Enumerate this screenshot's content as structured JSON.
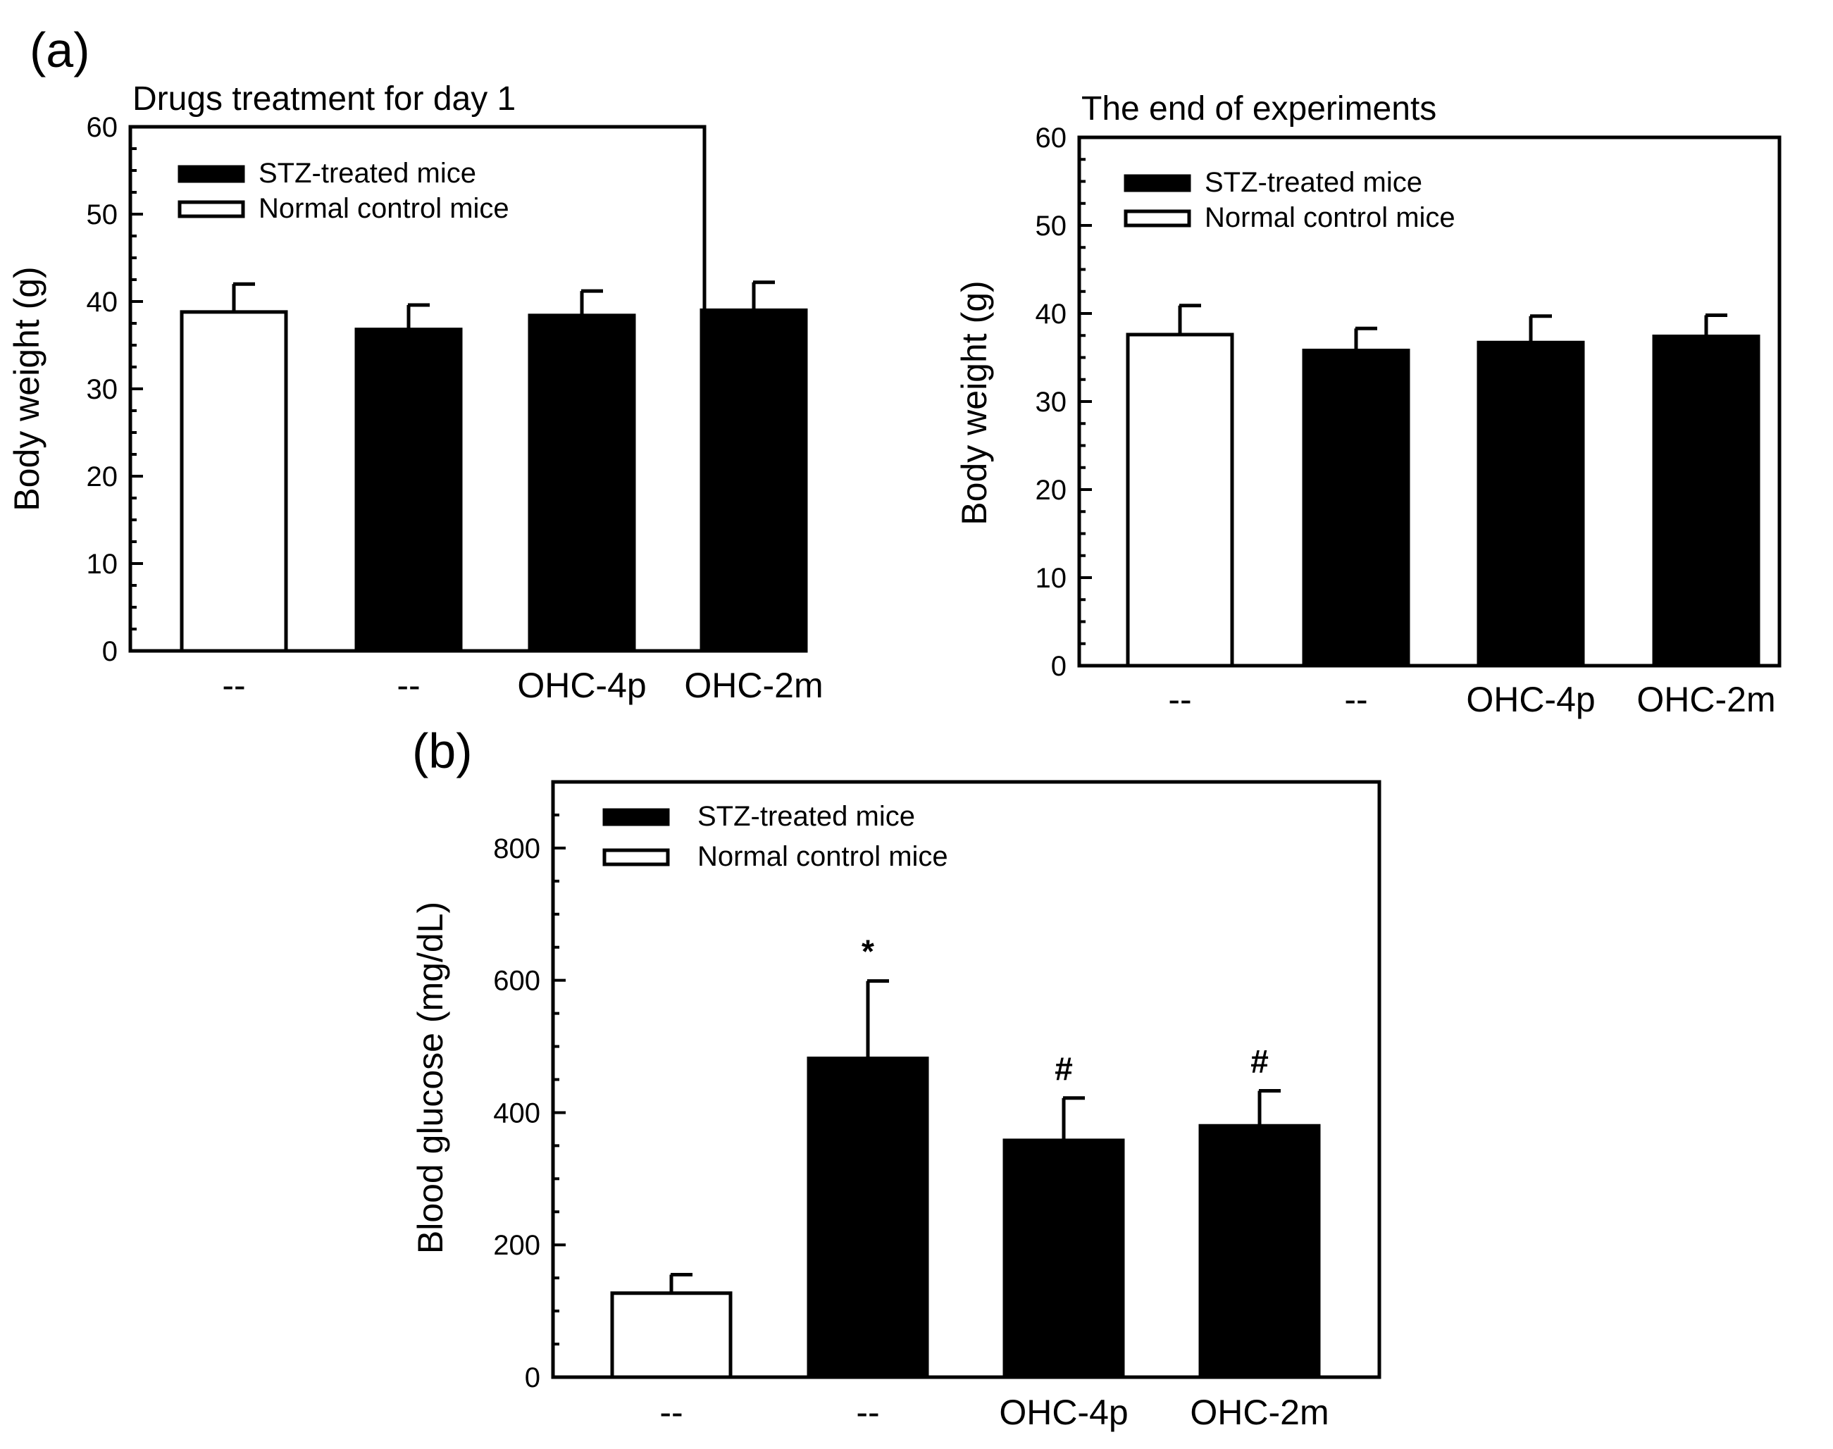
{
  "panel_labels": {
    "a": "(a)",
    "b": "(b)"
  },
  "colors": {
    "stz": "#000000",
    "normal": "#ffffff",
    "axis": "#000000"
  },
  "chart_data": [
    {
      "id": "a1",
      "type": "bar",
      "title": "Drugs treatment for day 1",
      "xlabel": "",
      "ylabel": "Body weight (g)",
      "ylim": [
        0,
        60
      ],
      "yticks": [
        0,
        10,
        20,
        30,
        40,
        50,
        60
      ],
      "categories": [
        "--",
        "--",
        "OHC-4p",
        "OHC-2m"
      ],
      "groups": [
        "Normal control mice",
        "STZ-treated mice",
        "STZ-treated mice",
        "STZ-treated mice"
      ],
      "values": [
        38.8,
        36.8,
        38.4,
        39.0
      ],
      "errors": [
        3.2,
        2.8,
        2.8,
        3.2
      ],
      "annotations": [
        "",
        "",
        "",
        ""
      ],
      "legend": [
        {
          "label": "STZ-treated mice",
          "fill": "black"
        },
        {
          "label": "Normal control mice",
          "fill": "white"
        }
      ],
      "legend_position": "top-left"
    },
    {
      "id": "a2",
      "type": "bar",
      "title": "The end of experiments",
      "xlabel": "",
      "ylabel": "Body weight (g)",
      "ylim": [
        0,
        60
      ],
      "yticks": [
        0,
        10,
        20,
        30,
        40,
        50,
        60
      ],
      "categories": [
        "--",
        "--",
        "OHC-4p",
        "OHC-2m"
      ],
      "groups": [
        "Normal control mice",
        "STZ-treated mice",
        "STZ-treated mice",
        "STZ-treated mice"
      ],
      "values": [
        37.6,
        35.8,
        36.7,
        37.4
      ],
      "errors": [
        3.3,
        2.5,
        3.0,
        2.4
      ],
      "annotations": [
        "",
        "",
        "",
        ""
      ],
      "legend": [
        {
          "label": "STZ-treated mice",
          "fill": "black"
        },
        {
          "label": "Normal control mice",
          "fill": "white"
        }
      ],
      "legend_position": "top-left"
    },
    {
      "id": "b",
      "type": "bar",
      "title": "",
      "xlabel": "",
      "ylabel": "Blood glucose (mg/dL)",
      "ylim": [
        0,
        900
      ],
      "yticks": [
        0,
        200,
        400,
        600,
        800
      ],
      "categories": [
        "--",
        "--",
        "OHC-4p",
        "OHC-2m"
      ],
      "groups": [
        "Normal control mice",
        "STZ-treated mice",
        "STZ-treated mice",
        "STZ-treated mice"
      ],
      "values": [
        127,
        482,
        358,
        380
      ],
      "errors": [
        28,
        117,
        64,
        53
      ],
      "annotations": [
        "",
        "*",
        "#",
        "#"
      ],
      "legend": [
        {
          "label": "STZ-treated mice",
          "fill": "black"
        },
        {
          "label": "Normal control mice",
          "fill": "white"
        }
      ],
      "legend_position": "top-left"
    }
  ]
}
